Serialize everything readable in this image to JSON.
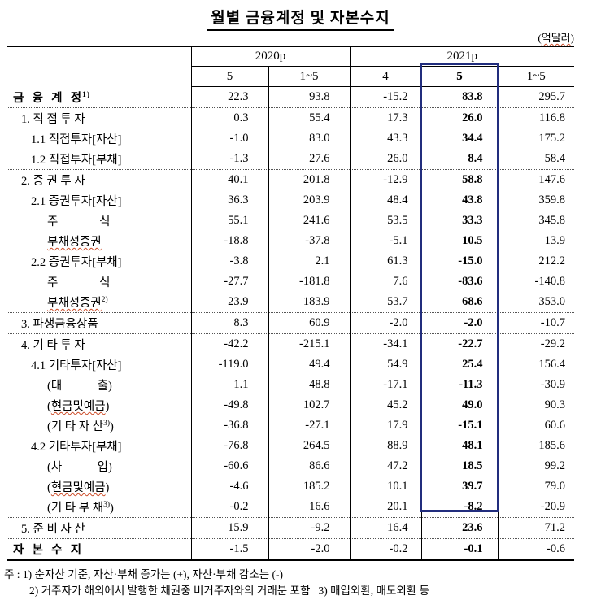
{
  "title": "월별 금융계정 및 자본수지",
  "unit": {
    "pre": "(",
    "text": "억달러",
    "post": ")"
  },
  "table": {
    "highlight_color": "#212d7d",
    "highlighted_column": "2021p-5",
    "col_groups": [
      {
        "label": "2020p"
      },
      {
        "label": "2021p"
      }
    ],
    "sub_headers": [
      "5",
      "1~5",
      "4",
      "5",
      "1~5"
    ],
    "rows": [
      {
        "pre": "금  융  계  정",
        "sup": "1)",
        "indent": 0,
        "bold": true,
        "dotted": false,
        "values": [
          "22.3",
          "93.8",
          "-15.2",
          "83.8",
          "295.7"
        ]
      },
      {
        "pre": "1. 직 접 투 자",
        "indent": 1,
        "bold": false,
        "dotted": true,
        "values": [
          "0.3",
          "55.4",
          "17.3",
          "26.0",
          "116.8"
        ]
      },
      {
        "pre": "1.1 직접투자[자산]",
        "indent": 2,
        "bold": false,
        "dotted": false,
        "values": [
          "-1.0",
          "83.0",
          "43.3",
          "34.4",
          "175.2"
        ]
      },
      {
        "pre": "1.2 직접투자[부채]",
        "indent": 2,
        "bold": false,
        "dotted": false,
        "values": [
          "-1.3",
          "27.6",
          "26.0",
          "8.4",
          "58.4"
        ]
      },
      {
        "pre": "2. 증 권 투 자",
        "indent": 1,
        "bold": false,
        "dotted": true,
        "values": [
          "40.1",
          "201.8",
          "-12.9",
          "58.8",
          "147.6"
        ]
      },
      {
        "pre": "2.1 증권투자[자산]",
        "indent": 2,
        "bold": false,
        "dotted": false,
        "values": [
          "36.3",
          "203.9",
          "48.4",
          "43.8",
          "359.8"
        ]
      },
      {
        "pre": "주              식",
        "indent": 3,
        "bold": false,
        "dotted": false,
        "values": [
          "55.1",
          "241.6",
          "53.5",
          "33.3",
          "345.8"
        ]
      },
      {
        "wavy": "부채성증권",
        "indent": 3,
        "bold": false,
        "dotted": false,
        "values": [
          "-18.8",
          "-37.8",
          "-5.1",
          "10.5",
          "13.9"
        ]
      },
      {
        "pre": "2.2 증권투자[부채]",
        "indent": 2,
        "bold": false,
        "dotted": false,
        "values": [
          "-3.8",
          "2.1",
          "61.3",
          "-15.0",
          "212.2"
        ]
      },
      {
        "pre": "주              식",
        "indent": 3,
        "bold": false,
        "dotted": false,
        "values": [
          "-27.7",
          "-181.8",
          "7.6",
          "-83.6",
          "-140.8"
        ]
      },
      {
        "wavy": "부채성증권",
        "sup": "2)",
        "indent": 3,
        "bold": false,
        "dotted": false,
        "values": [
          "23.9",
          "183.9",
          "53.7",
          "68.6",
          "353.0"
        ]
      },
      {
        "pre": "3. 파생금융상품",
        "indent": 1,
        "bold": false,
        "dotted": true,
        "values": [
          "8.3",
          "60.9",
          "-2.0",
          "-2.0",
          "-10.7"
        ]
      },
      {
        "pre": "4. 기 타 투 자",
        "indent": 1,
        "bold": false,
        "dotted": true,
        "values": [
          "-42.2",
          "-215.1",
          "-34.1",
          "-22.7",
          "-29.2"
        ]
      },
      {
        "pre": "4.1 기타투자[자산]",
        "indent": 2,
        "bold": false,
        "dotted": false,
        "values": [
          "-119.0",
          "49.4",
          "54.9",
          "25.4",
          "156.4"
        ]
      },
      {
        "pre": "(대            출)",
        "indent": 3,
        "bold": false,
        "dotted": false,
        "values": [
          "1.1",
          "48.8",
          "-17.1",
          "-11.3",
          "-30.9"
        ]
      },
      {
        "pre": "(",
        "wavy": "현금및예금",
        "post": ")",
        "indent": 3,
        "bold": false,
        "dotted": false,
        "values": [
          "-49.8",
          "102.7",
          "45.2",
          "49.0",
          "90.3"
        ]
      },
      {
        "pre": "(기 타 자 산",
        "sup": "3)",
        "post": ")",
        "indent": 3,
        "bold": false,
        "dotted": false,
        "values": [
          "-36.8",
          "-27.1",
          "17.9",
          "-15.1",
          "60.6"
        ]
      },
      {
        "pre": "4.2 기타투자[부채]",
        "indent": 2,
        "bold": false,
        "dotted": false,
        "values": [
          "-76.8",
          "264.5",
          "88.9",
          "48.1",
          "185.6"
        ]
      },
      {
        "pre": "(차            입)",
        "indent": 3,
        "bold": false,
        "dotted": false,
        "values": [
          "-60.6",
          "86.6",
          "47.2",
          "18.5",
          "99.2"
        ]
      },
      {
        "pre": "(",
        "wavy": "현금및예금",
        "post": ")",
        "indent": 3,
        "bold": false,
        "dotted": false,
        "values": [
          "-4.6",
          "185.2",
          "10.1",
          "39.7",
          "79.0"
        ]
      },
      {
        "pre": "(기 타 부 채",
        "sup": "3)",
        "post": ")",
        "indent": 3,
        "bold": false,
        "dotted": false,
        "values": [
          "-0.2",
          "16.6",
          "20.1",
          "-8.2",
          "-20.9"
        ]
      },
      {
        "pre": "5. 준 비 자 산",
        "indent": 1,
        "bold": false,
        "dotted": true,
        "values": [
          "15.9",
          "-9.2",
          "16.4",
          "23.6",
          "71.2"
        ]
      },
      {
        "pre": "자  본  수  지",
        "indent": 0,
        "bold": true,
        "dotted": true,
        "values": [
          "-1.5",
          "-2.0",
          "-0.2",
          "-0.1",
          "-0.6"
        ]
      }
    ]
  },
  "notes": {
    "line1": "주 : 1) 순자산 기준, 자산·부채 증가는 (+), 자산·부채 감소는 (-)",
    "line2": "2) 거주자가 해외에서 발행한 채권중 비거주자와의 거래분 포함   3) 매입외환, 매도외환 등"
  }
}
